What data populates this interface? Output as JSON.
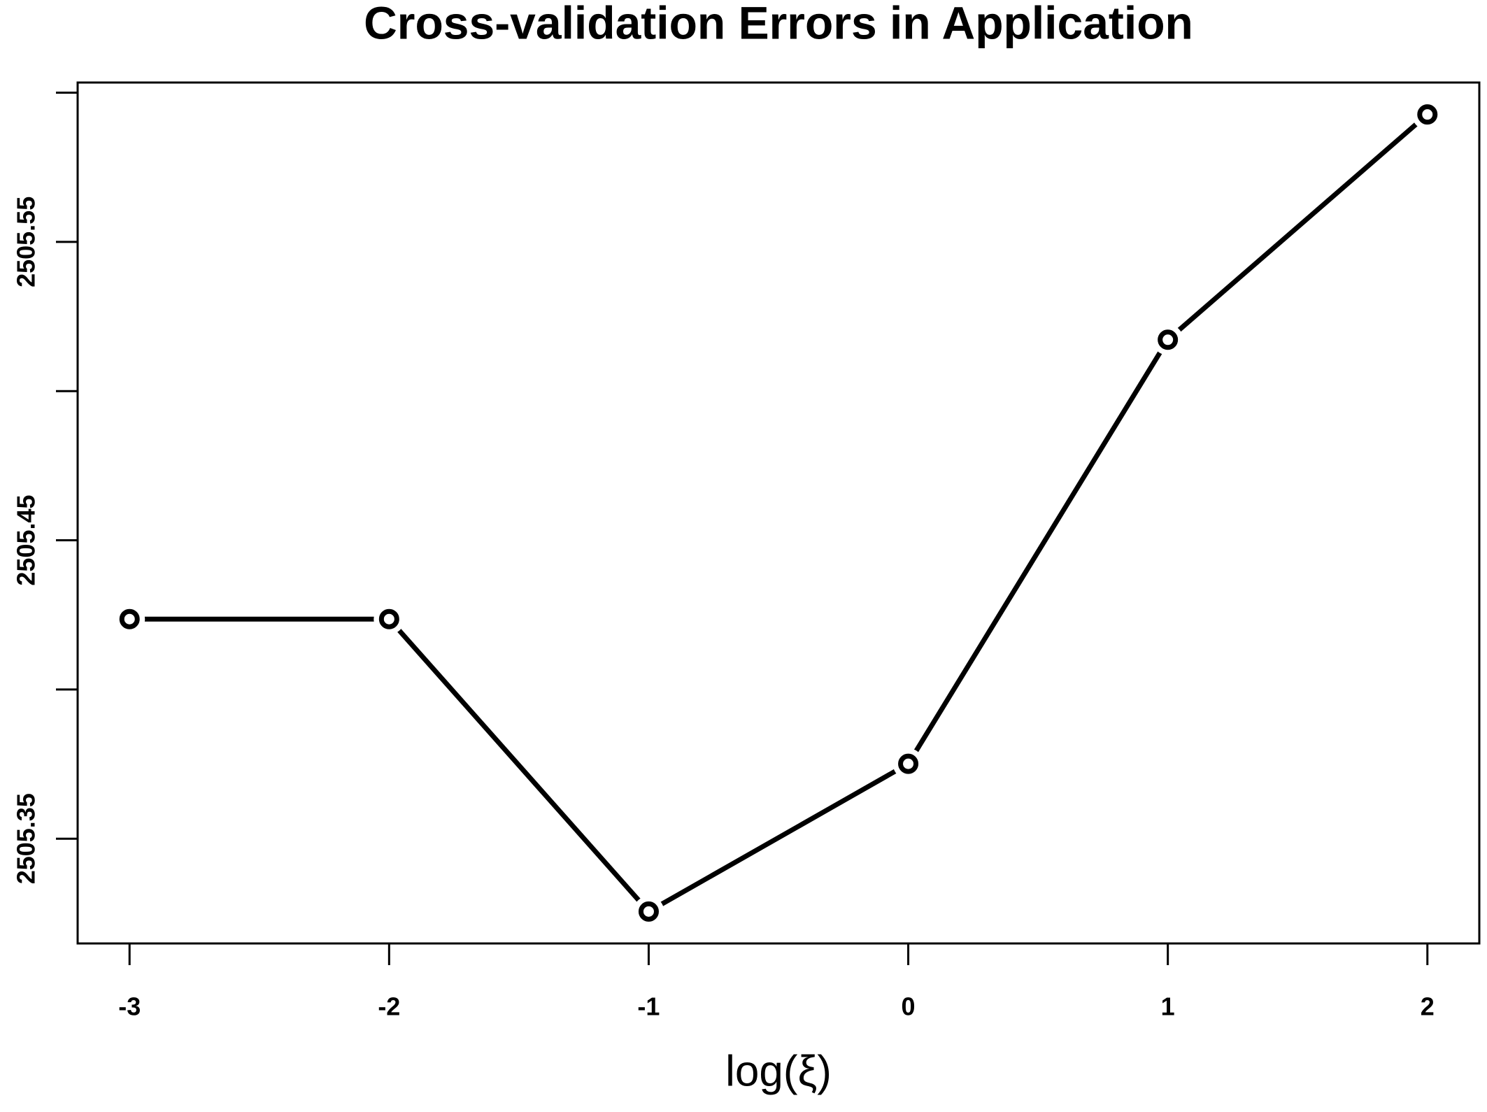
{
  "chart_data": {
    "type": "line",
    "title": "Cross-validation Errors in Application",
    "x_label": "log(ξ)",
    "x": [
      -3,
      -2,
      -1,
      0,
      1,
      2
    ],
    "series": [
      {
        "color": "#000000",
        "values": [
          2505.4236,
          2505.4236,
          2505.3256,
          2505.3751,
          2505.5172,
          2505.5927
        ]
      }
    ],
    "xlim": [
      -3.2,
      2.2
    ],
    "ylim": [
      2505.3149,
      2505.6034
    ],
    "xticks": [
      -3,
      -2,
      -1,
      0,
      1,
      2
    ],
    "yticks": [
      2505.35,
      {
        "value": 2505.4,
        "label": null
      },
      2505.45,
      {
        "value": 2505.5,
        "label": null
      },
      2505.55,
      {
        "value": 2505.6,
        "label": null
      }
    ],
    "grid": false,
    "markers": true
  }
}
